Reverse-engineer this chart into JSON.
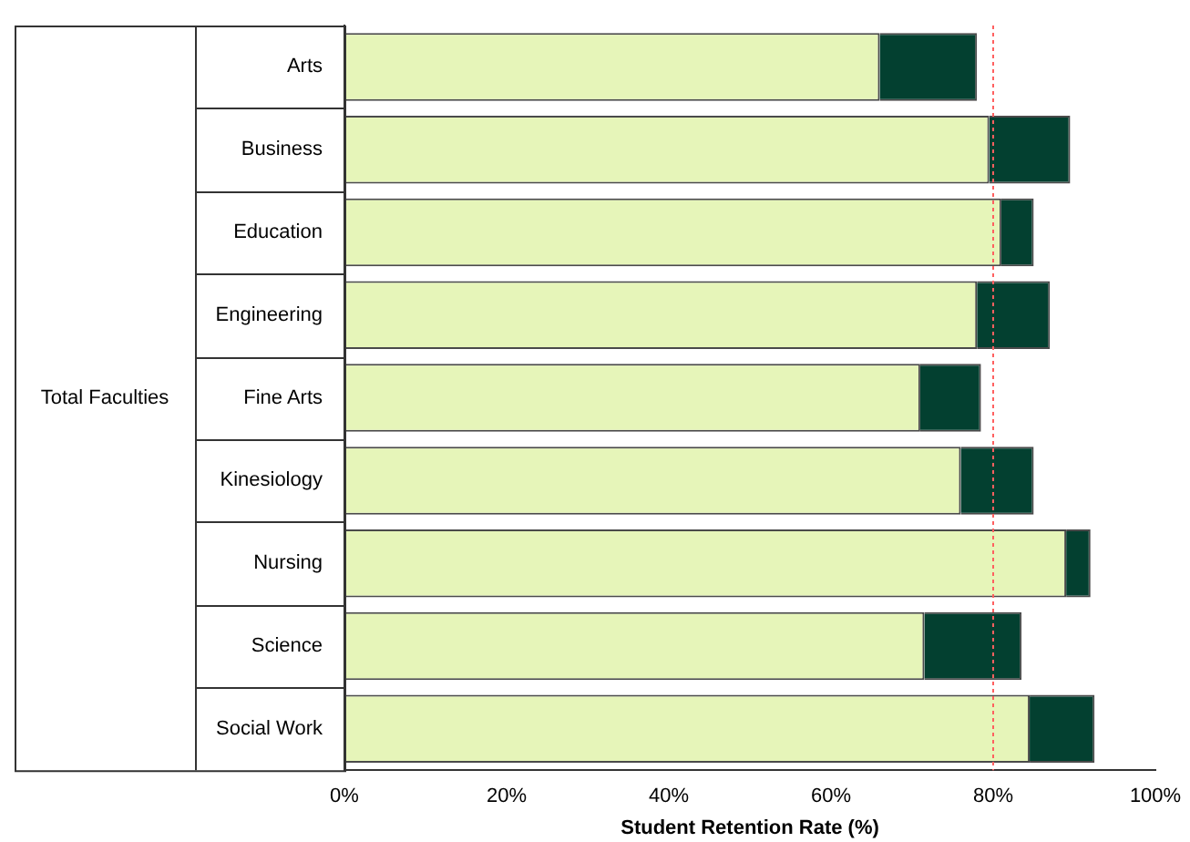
{
  "chart_data": {
    "type": "bar",
    "orientation": "horizontal",
    "stacked": true,
    "xlabel": "Student Retention Rate (%)",
    "ylabel": "Total Faculties",
    "categories": [
      "Arts",
      "Business",
      "Education",
      "Engineering",
      "Fine Arts",
      "Kinesiology",
      "Nursing",
      "Science",
      "Social Work"
    ],
    "series": [
      {
        "color": "#e6f5b9",
        "values": [
          66,
          79.5,
          81,
          78,
          71,
          76,
          89,
          71.5,
          84.5
        ]
      },
      {
        "color": "#034030",
        "values": [
          12,
          10,
          4,
          9,
          7.5,
          9,
          3,
          12,
          8
        ]
      }
    ],
    "xlim": [
      0,
      100
    ],
    "xticks": [
      {
        "value": 0,
        "label": "0%"
      },
      {
        "value": 20,
        "label": "20%"
      },
      {
        "value": 40,
        "label": "40%"
      },
      {
        "value": 60,
        "label": "60%"
      },
      {
        "value": 80,
        "label": "80%"
      },
      {
        "value": 100,
        "label": "100%"
      }
    ],
    "ref_lines": [
      {
        "axis": "x",
        "value": 80,
        "color": "#ff6060",
        "line_style": "dotted"
      }
    ],
    "grid": false,
    "legend": false
  }
}
